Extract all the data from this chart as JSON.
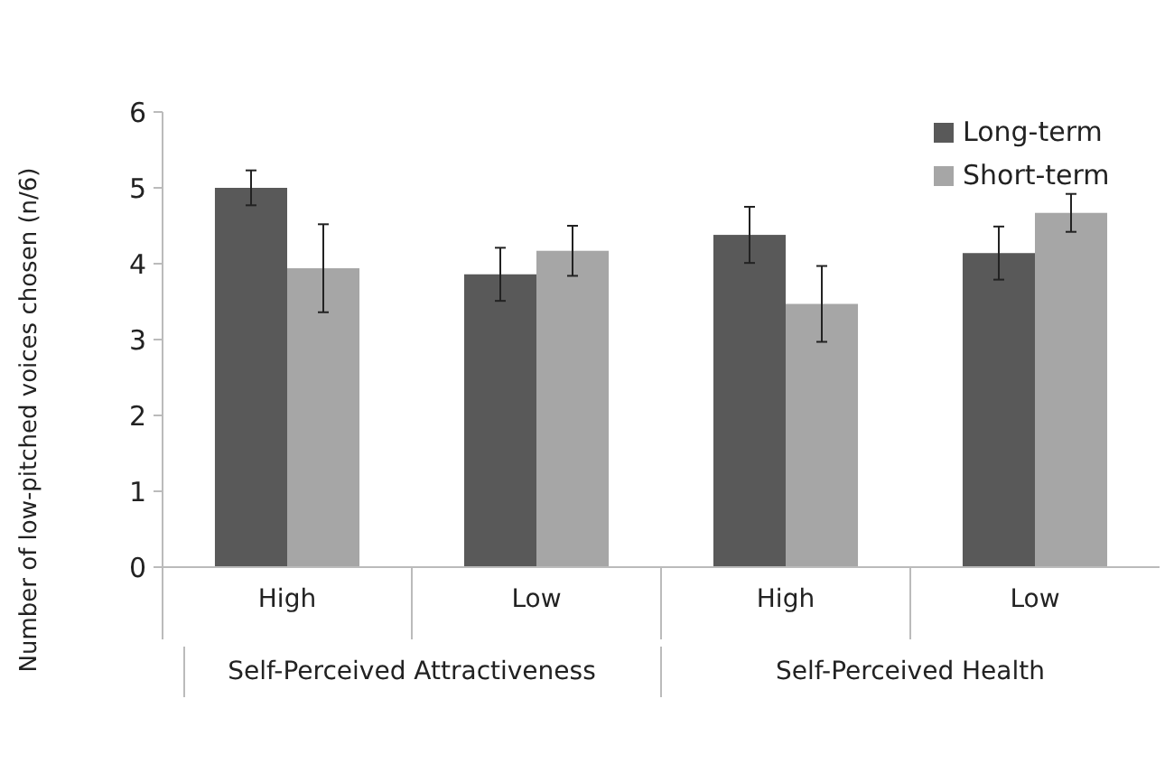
{
  "chart_data": {
    "type": "bar",
    "ylabel": "Number of low-pitched voices chosen (n/6)",
    "categories": [
      "High",
      "Low",
      "High",
      "Low"
    ],
    "series": [
      {
        "name": "Long-term",
        "color": "#595959",
        "values": [
          5.0,
          3.86,
          4.38,
          4.14
        ],
        "errors": [
          0.23,
          0.35,
          0.37,
          0.35
        ]
      },
      {
        "name": "Short-term",
        "color": "#a6a6a6",
        "values": [
          3.94,
          4.17,
          3.47,
          4.67
        ],
        "errors": [
          0.58,
          0.33,
          0.5,
          0.25
        ]
      }
    ],
    "ylim": [
      0,
      6
    ],
    "yticks": [
      0,
      1,
      2,
      3,
      4,
      5,
      6
    ],
    "grid": false,
    "legend": "top right",
    "annotations": [
      "Self-Perceived Attractiveness",
      "Self-Perceived Health"
    ]
  }
}
